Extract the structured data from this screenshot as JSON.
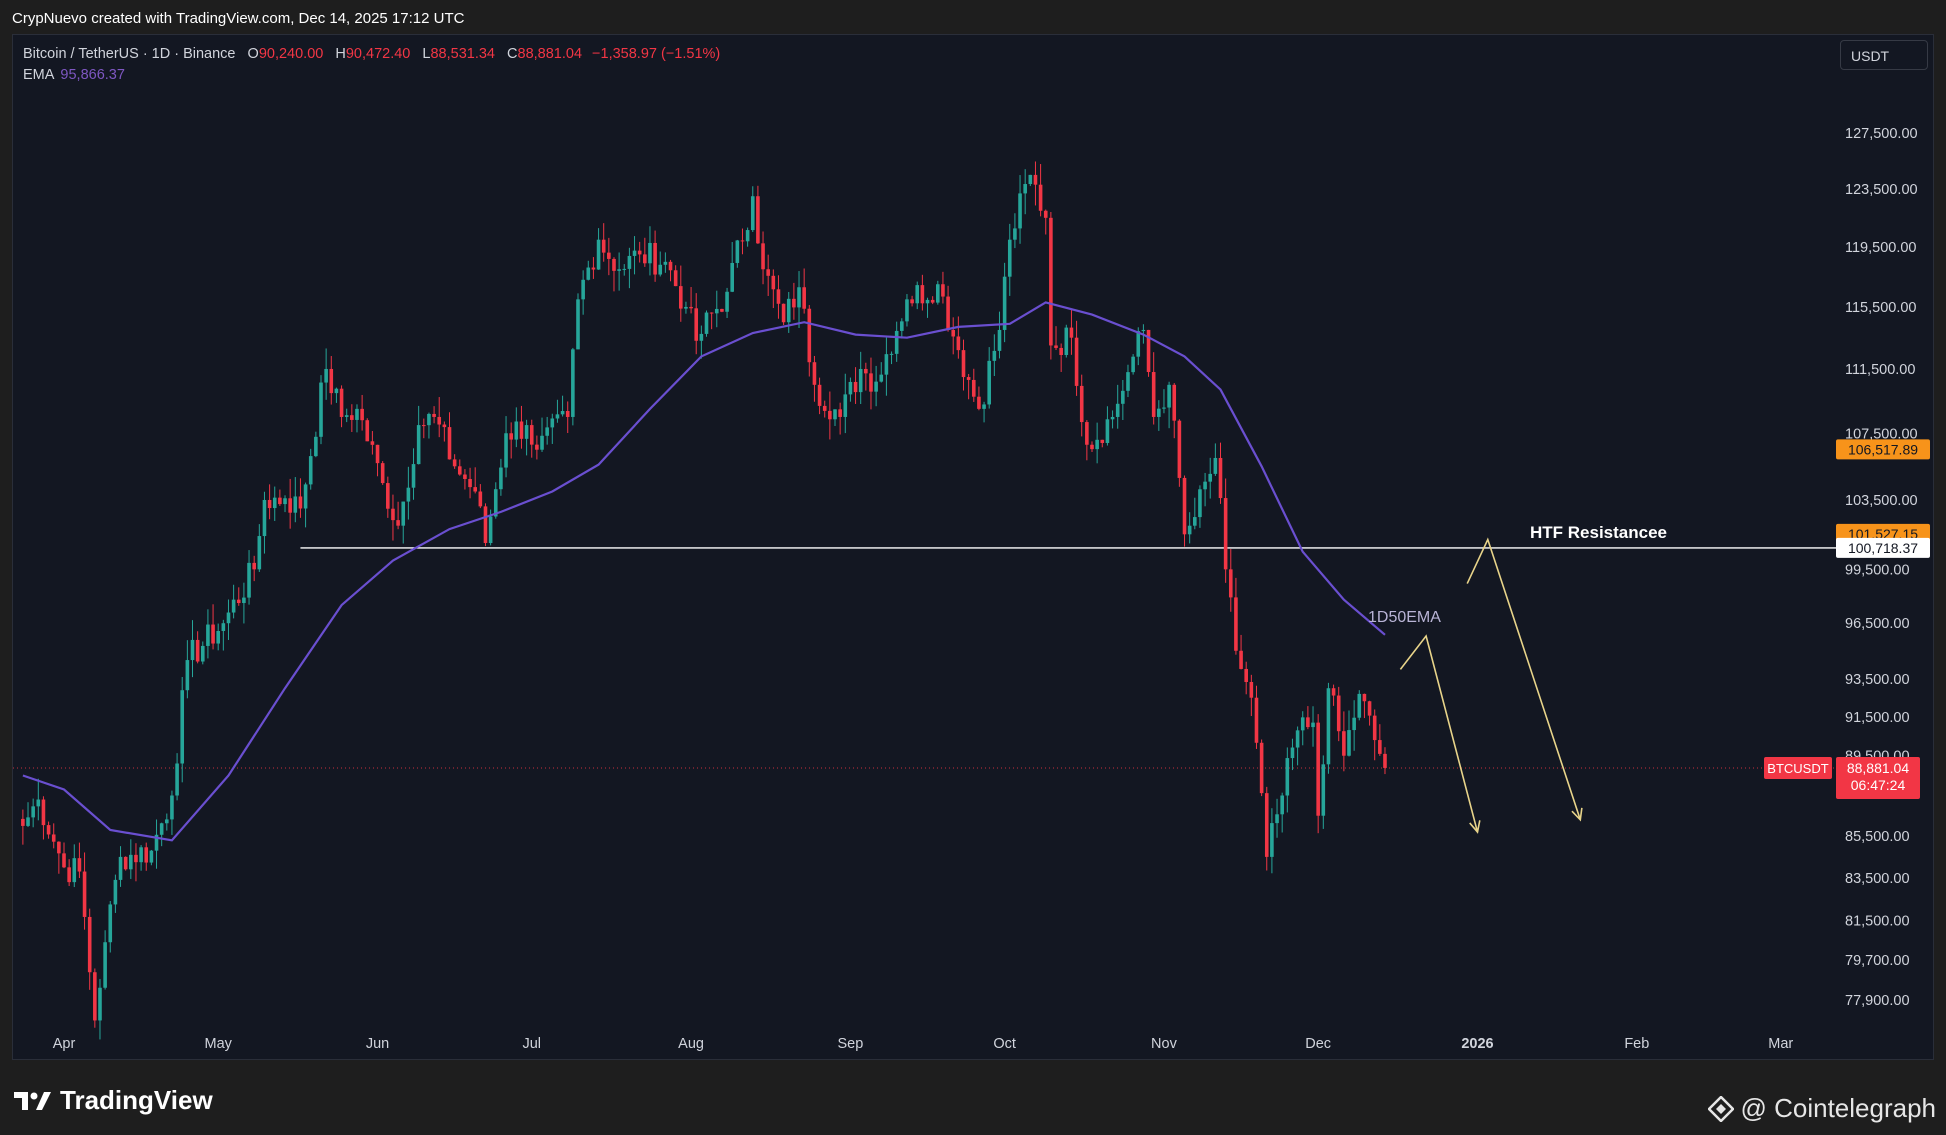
{
  "attribution": "CrypNuevo created with TradingView.com, Dec 14, 2025 17:12 UTC",
  "legend": {
    "symbol": "Bitcoin / TetherUS · 1D · Binance",
    "open_label": "O",
    "open": "90,240.00",
    "high_label": "H",
    "high": "90,472.40",
    "low_label": "L",
    "low": "88,531.34",
    "close_label": "C",
    "close": "88,881.04",
    "change": "−1,358.97 (−1.51%)",
    "ema_label": "EMA",
    "ema_value": "95,866.37"
  },
  "currency": "USDT",
  "branding": {
    "left": "TradingView",
    "right": "@ Cointelegraph"
  },
  "colors": {
    "background": "#131722",
    "up": "#26a69a",
    "down": "#f23645",
    "ema": "#6a4fd0",
    "resistance": "#ffffff",
    "arrows": "#e8d48a",
    "badge_orange": "#f7931a",
    "badge_red": "#f23645"
  },
  "chart_data": {
    "type": "candlestick",
    "symbol": "BTCUSDT",
    "interval": "1D",
    "x_labels": [
      "Apr",
      "May",
      "Jun",
      "Jul",
      "Aug",
      "Sep",
      "Oct",
      "Nov",
      "Dec",
      "2026",
      "Feb",
      "Mar"
    ],
    "y_ticks": [
      "127,500.00",
      "123,500.00",
      "119,500.00",
      "115,500.00",
      "111,500.00",
      "107,500.00",
      "103,500.00",
      "99,500.00",
      "96,500.00",
      "93,500.00",
      "91,500.00",
      "89,500.00",
      "85,500.00",
      "83,500.00",
      "81,500.00",
      "79,700.00",
      "77,900.00"
    ],
    "y_tick_values": [
      127500,
      123500,
      119500,
      115500,
      111500,
      107500,
      103500,
      99500,
      96500,
      93500,
      91500,
      89500,
      85500,
      83500,
      81500,
      79700,
      77900
    ],
    "price_badges": [
      {
        "value": 106517.89,
        "label": "106,517.89",
        "style": "orange"
      },
      {
        "value": 101527.15,
        "label": "101,527.15",
        "style": "orange"
      },
      {
        "value": 100718.37,
        "label": "100,718.37",
        "style": "white"
      },
      {
        "value": 88881.04,
        "label": "88,881.04",
        "countdown": "06:47:24",
        "symbol_tag": "BTCUSDT",
        "style": "red"
      }
    ],
    "last_price": 88881.04,
    "resistance": {
      "value": 100718.37,
      "label": "HTF Resistancee",
      "start": "2025-05-17"
    },
    "ema_label": "1D50EMA",
    "ohlc_anchors": [
      [
        "2025-03-24",
        86000
      ],
      [
        "2025-03-27",
        87300
      ],
      [
        "2025-04-01",
        84000
      ],
      [
        "2025-04-04",
        83800
      ],
      [
        "2025-04-07",
        77000
      ],
      [
        "2025-04-09",
        80500
      ],
      [
        "2025-04-12",
        84500
      ],
      [
        "2025-04-18",
        84800
      ],
      [
        "2025-04-22",
        87500
      ],
      [
        "2025-04-25",
        94500
      ],
      [
        "2025-05-02",
        96500
      ],
      [
        "2025-05-08",
        99500
      ],
      [
        "2025-05-10",
        103500
      ],
      [
        "2025-05-14",
        103600
      ],
      [
        "2025-05-17",
        103000
      ],
      [
        "2025-05-22",
        111500
      ],
      [
        "2025-05-25",
        108500
      ],
      [
        "2025-05-28",
        109000
      ],
      [
        "2025-06-02",
        104500
      ],
      [
        "2025-06-05",
        102000
      ],
      [
        "2025-06-09",
        108000
      ],
      [
        "2025-06-12",
        108500
      ],
      [
        "2025-06-16",
        105500
      ],
      [
        "2025-06-20",
        104000
      ],
      [
        "2025-06-22",
        101000
      ],
      [
        "2025-06-26",
        107500
      ],
      [
        "2025-06-30",
        108000
      ],
      [
        "2025-07-02",
        106500
      ],
      [
        "2025-07-08",
        108500
      ],
      [
        "2025-07-10",
        116000
      ],
      [
        "2025-07-14",
        120000
      ],
      [
        "2025-07-18",
        118000
      ],
      [
        "2025-07-22",
        119000
      ],
      [
        "2025-07-27",
        118500
      ],
      [
        "2025-07-31",
        115500
      ],
      [
        "2025-08-02",
        113300
      ],
      [
        "2025-08-08",
        116500
      ],
      [
        "2025-08-13",
        123000
      ],
      [
        "2025-08-15",
        118000
      ],
      [
        "2025-08-19",
        114500
      ],
      [
        "2025-08-22",
        116800
      ],
      [
        "2025-08-25",
        110500
      ],
      [
        "2025-08-30",
        108500
      ],
      [
        "2025-09-03",
        111500
      ],
      [
        "2025-09-06",
        110700
      ],
      [
        "2025-09-12",
        116000
      ],
      [
        "2025-09-18",
        117000
      ],
      [
        "2025-09-22",
        112700
      ],
      [
        "2025-09-26",
        109000
      ],
      [
        "2025-09-30",
        114000
      ],
      [
        "2025-10-02",
        120000
      ],
      [
        "2025-10-06",
        124500
      ],
      [
        "2025-10-09",
        121500
      ],
      [
        "2025-10-10",
        113000
      ],
      [
        "2025-10-14",
        113500
      ],
      [
        "2025-10-17",
        106800
      ],
      [
        "2025-10-22",
        108500
      ],
      [
        "2025-10-25",
        111300
      ],
      [
        "2025-10-28",
        114000
      ],
      [
        "2025-10-30",
        108500
      ],
      [
        "2025-11-02",
        110500
      ],
      [
        "2025-11-05",
        101500
      ],
      [
        "2025-11-07",
        102500
      ],
      [
        "2025-11-11",
        106000
      ],
      [
        "2025-11-13",
        99500
      ],
      [
        "2025-11-15",
        95000
      ],
      [
        "2025-11-18",
        92500
      ],
      [
        "2025-11-21",
        84500
      ],
      [
        "2025-11-24",
        87500
      ],
      [
        "2025-11-27",
        90800
      ],
      [
        "2025-11-30",
        91200
      ],
      [
        "2025-12-01",
        86500
      ],
      [
        "2025-12-03",
        93000
      ],
      [
        "2025-12-06",
        89500
      ],
      [
        "2025-12-09",
        92700
      ],
      [
        "2025-12-12",
        90300
      ],
      [
        "2025-12-14",
        88881.04
      ]
    ],
    "ema_points": [
      [
        "2025-03-24",
        88500
      ],
      [
        "2025-04-01",
        87800
      ],
      [
        "2025-04-10",
        85800
      ],
      [
        "2025-04-22",
        85300
      ],
      [
        "2025-05-03",
        88500
      ],
      [
        "2025-05-14",
        93000
      ],
      [
        "2025-05-25",
        97500
      ],
      [
        "2025-06-04",
        100000
      ],
      [
        "2025-06-15",
        101800
      ],
      [
        "2025-06-25",
        102800
      ],
      [
        "2025-07-05",
        104000
      ],
      [
        "2025-07-14",
        105600
      ],
      [
        "2025-07-24",
        109000
      ],
      [
        "2025-08-03",
        112300
      ],
      [
        "2025-08-13",
        113800
      ],
      [
        "2025-08-23",
        114500
      ],
      [
        "2025-09-02",
        113700
      ],
      [
        "2025-09-12",
        113500
      ],
      [
        "2025-09-22",
        114200
      ],
      [
        "2025-10-02",
        114400
      ],
      [
        "2025-10-09",
        115800
      ],
      [
        "2025-10-18",
        115000
      ],
      [
        "2025-10-28",
        113700
      ],
      [
        "2025-11-05",
        112300
      ],
      [
        "2025-11-12",
        110200
      ],
      [
        "2025-11-20",
        105500
      ],
      [
        "2025-11-28",
        100500
      ],
      [
        "2025-12-06",
        97800
      ],
      [
        "2025-12-14",
        95866.37
      ]
    ],
    "projection_paths": [
      [
        [
          "2025-12-17",
          94000
        ],
        [
          "2025-12-22",
          95800
        ],
        [
          "2026-01-01",
          85700
        ]
      ],
      [
        [
          "2025-12-30",
          98700
        ],
        [
          "2026-01-03",
          101200
        ],
        [
          "2026-01-21",
          86300
        ]
      ]
    ],
    "grid": false,
    "y_scale": "log"
  }
}
